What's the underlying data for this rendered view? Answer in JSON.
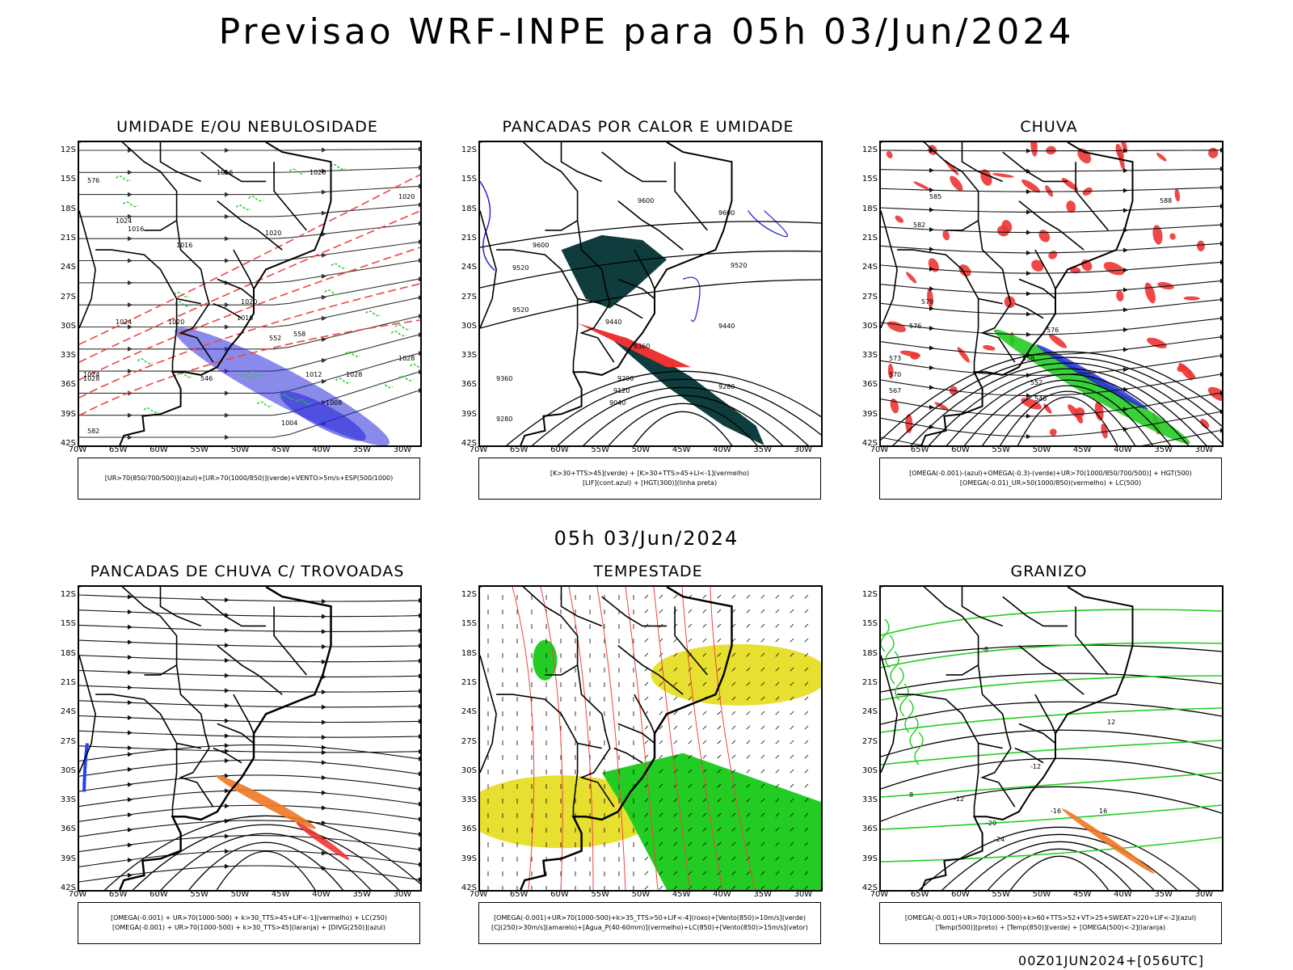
{
  "title": "Previsao WRF-INPE  para 05h 03/Jun/2024",
  "mid_date": "05h 03/Jun/2024",
  "footer": "00Z01JUN2024+[056UTC]",
  "lat_labels": [
    "12S",
    "15S",
    "18S",
    "21S",
    "24S",
    "27S",
    "30S",
    "33S",
    "36S",
    "39S",
    "42S"
  ],
  "lon_labels": [
    "70W",
    "65W",
    "60W",
    "55W",
    "50W",
    "45W",
    "40W",
    "35W",
    "30W"
  ],
  "panels": [
    {
      "title": "UMIDADE E/OU NEBULOSIDADE",
      "legend": [
        "[UR>70(850/700/500)](azul)+[UR>70(1000/850)](verde)+VENTO>5m/s+ESP(500/1000)"
      ],
      "contour_labels": [
        "1016",
        "1020",
        "1020",
        "1020",
        "1016",
        "1024",
        "1020",
        "1016",
        "1024",
        "1028",
        "1020",
        "1016",
        "1028",
        "1024",
        "1012",
        "1028",
        "1008",
        "1004",
        "576",
        "582",
        "552",
        "546",
        "558"
      ],
      "colors": {
        "high_rh": "#2a2ad8",
        "low_rh": "#22cc22",
        "thickness": "#ee4444"
      }
    },
    {
      "title": "PANCADAS POR CALOR E UMIDADE",
      "legend": [
        "[K>30+TTS>45](verde) + [K>30+TTS>45+LI<-1](vermelho)",
        "[LIF](cont.azul) + [HGT(300)](linha preta)"
      ],
      "contour_labels": [
        "9600",
        "9600",
        "9600",
        "9520",
        "9520",
        "9520",
        "9440",
        "9440",
        "9360",
        "9360",
        "9280",
        "9200",
        "9120",
        "9040",
        "9280"
      ],
      "colors": {
        "convective": "#0f3d3d",
        "lif": "#2a2ad8"
      }
    },
    {
      "title": "CHUVA",
      "legend": [
        "[OMEGA(-0.001)-(azul)+OMEGA(-0.3)-(verde)+UR>70(1000/850/700/500)] + HGT(500)",
        "[OMEGA(-0.01)_UR>50(1000/850)(vermelho) + LC(500)"
      ],
      "contour_labels": [
        "588",
        "585",
        "582",
        "579",
        "576",
        "573",
        "570",
        "567",
        "576",
        "558",
        "552",
        "546"
      ],
      "colors": {
        "rain_red": "#ee3333",
        "rain_green": "#22cc22",
        "rain_blue": "#2222dd"
      }
    },
    {
      "title": "PANCADAS DE CHUVA C/ TROVOADAS",
      "legend": [
        "[OMEGA(-0.001) + UR>70(1000-500) + k>30_TTS>45+LIF<-1](vermelho) + LC(250)",
        "[OMEGA(-0.001) + UR>70(1000-500) + k>30_TTS>45](laranja) + [DIVG(250)](azul)"
      ],
      "contour_labels": [],
      "colors": {
        "storm_red": "#ee3333",
        "storm_orange": "#ee7722",
        "divg_blue": "#2244ee"
      }
    },
    {
      "title": "TEMPESTADE",
      "legend": [
        "[OMEGA(-0.001)+UR>70(1000-500)+k>35_TTS>50+LIF<-4](roxo)+[Vento(850)>10m/s](verde)",
        "[CJ(250)>30m/s](amarelo)+[Agua_P(40-60mm)](vermelho)+LC(850)+[Vento(850)>15m/s](vetor)"
      ],
      "contour_labels": [],
      "colors": {
        "jet_yellow": "#e8e030",
        "wind_green": "#22cc22",
        "pw_red": "#ee4444"
      }
    },
    {
      "title": "GRANIZO",
      "legend": [
        "[OMEGA(-0.001)+UR>70(1000-500)+k>60+TTS>52+VT>25+SWEAT>220+LIF<-2](azul)",
        "[Temp(500)](preto) + [Temp(850)](verde) + [OMEGA(500)<-2](laranja)"
      ],
      "contour_labels": [
        "-8",
        "-12",
        "-12",
        "-16",
        "-20",
        "-24",
        "12",
        "16",
        "8"
      ],
      "colors": {
        "temp850": "#22cc22",
        "omega": "#ee7722"
      }
    }
  ]
}
